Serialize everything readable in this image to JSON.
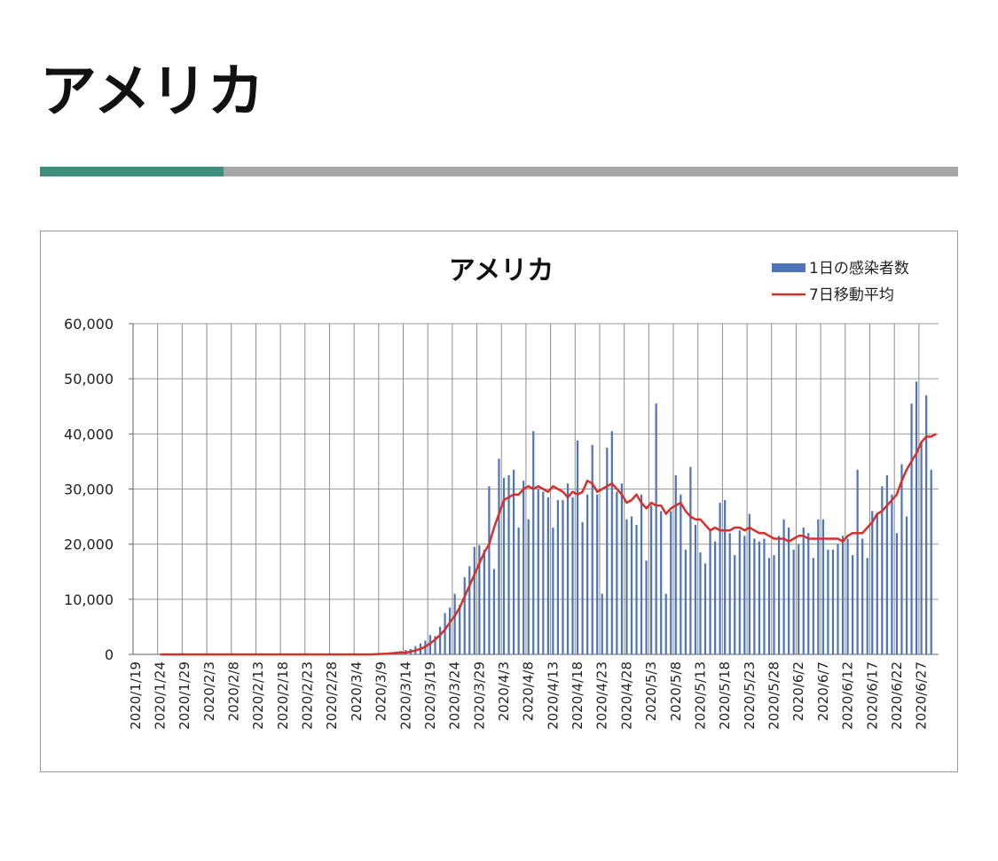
{
  "title": "アメリカ",
  "chart_data": {
    "type": "bar_line",
    "title": "アメリカ",
    "categories": [
      "2020/1/19",
      null,
      null,
      null,
      null,
      "2020/1/24",
      null,
      null,
      null,
      null,
      "2020/1/29",
      null,
      null,
      null,
      null,
      "2020/2/3",
      null,
      null,
      null,
      null,
      "2020/2/8",
      null,
      null,
      null,
      null,
      "2020/2/13",
      null,
      null,
      null,
      null,
      "2020/2/18",
      null,
      null,
      null,
      null,
      "2020/2/23",
      null,
      null,
      null,
      null,
      "2020/2/28",
      null,
      null,
      null,
      null,
      "2020/3/4",
      null,
      null,
      null,
      null,
      "2020/3/9",
      null,
      null,
      null,
      null,
      "2020/3/14",
      null,
      null,
      null,
      null,
      "2020/3/19",
      null,
      null,
      null,
      null,
      "2020/3/24",
      null,
      null,
      null,
      null,
      "2020/3/29",
      null,
      null,
      null,
      null,
      "2020/4/3",
      null,
      null,
      null,
      null,
      "2020/4/8",
      null,
      null,
      null,
      null,
      "2020/4/13",
      null,
      null,
      null,
      null,
      "2020/4/18",
      null,
      null,
      null,
      null,
      "2020/4/23",
      null,
      null,
      null,
      null,
      "2020/4/28",
      null,
      null,
      null,
      null,
      "2020/5/3",
      null,
      null,
      null,
      null,
      "2020/5/8",
      null,
      null,
      null,
      null,
      "2020/5/13",
      null,
      null,
      null,
      null,
      "2020/5/18",
      null,
      null,
      null,
      null,
      "2020/5/23",
      null,
      null,
      null,
      null,
      "2020/5/28",
      null,
      null,
      null,
      null,
      "2020/6/2",
      null,
      null,
      null,
      null,
      "2020/6/7",
      null,
      null,
      null,
      null,
      "2020/6/12",
      null,
      null,
      null,
      null,
      "2020/6/17",
      null,
      null,
      null,
      null,
      "2020/6/22",
      null,
      null,
      null,
      null,
      "2020/6/27",
      null,
      null,
      null
    ],
    "series": [
      {
        "name": "1日の感染者数",
        "type": "bar",
        "color": "#4f73b8",
        "values": [
          null,
          null,
          null,
          null,
          null,
          0,
          0,
          0,
          0,
          0,
          0,
          0,
          0,
          0,
          0,
          0,
          0,
          0,
          0,
          0,
          0,
          0,
          0,
          0,
          0,
          0,
          0,
          0,
          0,
          0,
          0,
          0,
          0,
          0,
          0,
          0,
          0,
          0,
          0,
          0,
          0,
          0,
          0,
          0,
          0,
          0,
          0,
          50,
          100,
          150,
          200,
          300,
          400,
          500,
          600,
          800,
          1000,
          1500,
          2000,
          2500,
          3500,
          3300,
          5000,
          7500,
          8500,
          11000,
          9000,
          14000,
          16000,
          19500,
          19800,
          19000,
          30500,
          15500,
          35500,
          32000,
          32500,
          33500,
          23000,
          31500,
          24500,
          40500,
          30000,
          29500,
          28500,
          23000,
          28000,
          28000,
          31000,
          28500,
          38800,
          24000,
          29000,
          38000,
          29000,
          11000,
          37500,
          40500,
          29500,
          31000,
          24500,
          25000,
          23500,
          29000,
          17000,
          27000,
          45500,
          26000,
          11000,
          26000,
          32500,
          29000,
          19000,
          34000,
          23500,
          18500,
          16500,
          22500,
          20500,
          27500,
          28000,
          22000,
          18000,
          22500,
          21500,
          25500,
          21000,
          20500,
          21000,
          17500,
          18000,
          21500,
          24500,
          23000,
          19000,
          20000,
          23000,
          22000,
          17500,
          24500,
          24500,
          19000,
          19000,
          20000,
          21500,
          21000,
          18000,
          33500,
          21000,
          17500,
          26000,
          25500,
          30500,
          32500,
          29000,
          22000,
          34500,
          25000,
          45500,
          49500,
          38500,
          47000,
          33500,
          null
        ]
      },
      {
        "name": "7日移動平均",
        "type": "line",
        "color": "#d6302a",
        "values": [
          null,
          null,
          null,
          null,
          null,
          0,
          0,
          0,
          0,
          0,
          0,
          0,
          0,
          0,
          0,
          0,
          0,
          0,
          0,
          0,
          0,
          0,
          0,
          0,
          0,
          0,
          0,
          0,
          0,
          0,
          0,
          0,
          0,
          0,
          0,
          0,
          0,
          0,
          0,
          0,
          0,
          0,
          0,
          0,
          0,
          0,
          0,
          0,
          0,
          50,
          80,
          120,
          180,
          250,
          350,
          300,
          500,
          700,
          1000,
          1400,
          2000,
          2700,
          3500,
          4500,
          5800,
          7000,
          8500,
          10500,
          12500,
          14500,
          16500,
          18500,
          20000,
          23000,
          25500,
          28000,
          28500,
          29000,
          29000,
          30000,
          30500,
          30000,
          30500,
          30000,
          29500,
          30500,
          30000,
          29500,
          28500,
          29500,
          29000,
          29500,
          31500,
          31000,
          29500,
          30000,
          30500,
          31000,
          30000,
          29000,
          27500,
          28000,
          29000,
          27500,
          26500,
          27500,
          27000,
          27000,
          25500,
          26500,
          27000,
          27500,
          26000,
          25000,
          24500,
          24500,
          23500,
          22500,
          23000,
          22500,
          22500,
          22500,
          23000,
          23000,
          22500,
          23000,
          22500,
          22000,
          22000,
          21500,
          21000,
          21000,
          21000,
          20500,
          21000,
          21500,
          21500,
          21000,
          21000,
          21000,
          21000,
          21000,
          21000,
          21000,
          20500,
          21500,
          22000,
          22000,
          22000,
          23000,
          24000,
          25500,
          26000,
          27000,
          28000,
          29000,
          31500,
          33500,
          35000,
          36500,
          38500,
          39500,
          39500,
          40000
        ]
      }
    ],
    "ylim": [
      0,
      60000
    ],
    "yticks": [
      0,
      {
        "value": 10000,
        "label": "10,000"
      },
      {
        "value": 20000,
        "label": "20,000"
      },
      {
        "value": 30000,
        "label": "30,000"
      },
      {
        "value": 40000,
        "label": "40,000"
      },
      {
        "value": 50000,
        "label": "50,000"
      },
      {
        "value": 60000,
        "label": "60,000"
      }
    ],
    "grid": true,
    "legend": "top-right"
  }
}
